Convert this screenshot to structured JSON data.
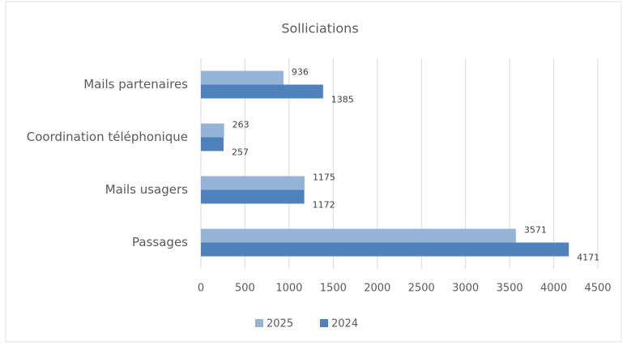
{
  "chart_data": {
    "type": "hbar",
    "title": "Solliciations",
    "categories": [
      "Mails partenaires",
      "Coordination téléphonique",
      "Mails usagers",
      "Passages"
    ],
    "series": [
      {
        "name": "2025",
        "color": "#95b3d7",
        "values": [
          936,
          263,
          1175,
          3571
        ]
      },
      {
        "name": "2024",
        "color": "#4f81bd",
        "values": [
          1385,
          257,
          1172,
          4171
        ]
      }
    ],
    "xlim": [
      0,
      4500
    ],
    "xticks": [
      0,
      500,
      1000,
      1500,
      2000,
      2500,
      3000,
      3500,
      4000,
      4500
    ],
    "grid": true,
    "legend": "bottom"
  }
}
